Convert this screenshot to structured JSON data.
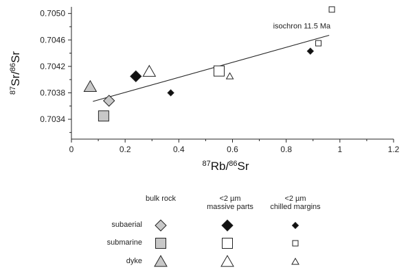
{
  "chart_data": {
    "type": "scatter",
    "xlabel_main": "87",
    "xlabel_mid": "Rb/",
    "xlabel_sup2": "86",
    "xlabel_end": "Sr",
    "ylabel_main": "87",
    "ylabel_mid": "Sr/",
    "ylabel_sup2": "86",
    "ylabel_end": "Sr",
    "xlim": [
      0,
      1.2
    ],
    "ylim": [
      0.7031,
      0.7051
    ],
    "x_ticks": [
      "0",
      "0.2",
      "0.4",
      "0.6",
      "0.8",
      "1",
      "1.2"
    ],
    "y_ticks": [
      "0.7034",
      "0.7038",
      "0.7042",
      "0.7046",
      "0.7050"
    ],
    "isochron": {
      "label": "isochron 11.5 Ma",
      "x": [
        0.08,
        0.96
      ],
      "y": [
        0.70367,
        0.70467
      ]
    },
    "series": [
      {
        "name": "subaerial",
        "type": "bulk rock",
        "marker": "diamond",
        "fill": "#c8c8c8",
        "size": "large",
        "x": [
          0.14
        ],
        "y": [
          0.70368
        ]
      },
      {
        "name": "subaerial",
        "type": "<2 µm massive parts",
        "marker": "diamond",
        "fill": "#111111",
        "size": "large",
        "x": [
          0.24
        ],
        "y": [
          0.70405
        ]
      },
      {
        "name": "subaerial",
        "type": "<2 µm chilled margins",
        "marker": "diamond",
        "fill": "#111111",
        "size": "small",
        "x": [
          0.37,
          0.89
        ],
        "y": [
          0.7038,
          0.70443
        ]
      },
      {
        "name": "submarine",
        "type": "bulk rock",
        "marker": "square",
        "fill": "#c8c8c8",
        "size": "large",
        "x": [
          0.12
        ],
        "y": [
          0.70345
        ]
      },
      {
        "name": "submarine",
        "type": "<2 µm massive parts",
        "marker": "square",
        "fill": "#ffffff",
        "size": "large",
        "x": [
          0.55
        ],
        "y": [
          0.70413
        ]
      },
      {
        "name": "submarine",
        "type": "<2 µm chilled margins",
        "marker": "square",
        "fill": "#ffffff",
        "size": "small",
        "x": [
          0.92,
          0.97
        ],
        "y": [
          0.70455,
          0.70506
        ]
      },
      {
        "name": "dyke",
        "type": "bulk rock",
        "marker": "triangle",
        "fill": "#c8c8c8",
        "size": "large",
        "x": [
          0.07
        ],
        "y": [
          0.70389
        ]
      },
      {
        "name": "dyke",
        "type": "<2 µm massive parts",
        "marker": "triangle",
        "fill": "#ffffff",
        "size": "large",
        "x": [
          0.29
        ],
        "y": [
          0.70412
        ]
      },
      {
        "name": "dyke",
        "type": "<2 µm chilled margins",
        "marker": "triangle",
        "fill": "#ffffff",
        "size": "small",
        "x": [
          0.59
        ],
        "y": [
          0.70405
        ]
      }
    ]
  },
  "legend": {
    "columns": [
      "bulk rock",
      "<2 µm",
      "massive parts",
      "<2 µm",
      "chilled margins"
    ],
    "rows": [
      "subaerial",
      "submarine",
      "dyke"
    ]
  },
  "colors": {
    "axis": "#222222",
    "gray_fill": "#c8c8c8",
    "black_fill": "#111111",
    "white_fill": "#ffffff"
  }
}
